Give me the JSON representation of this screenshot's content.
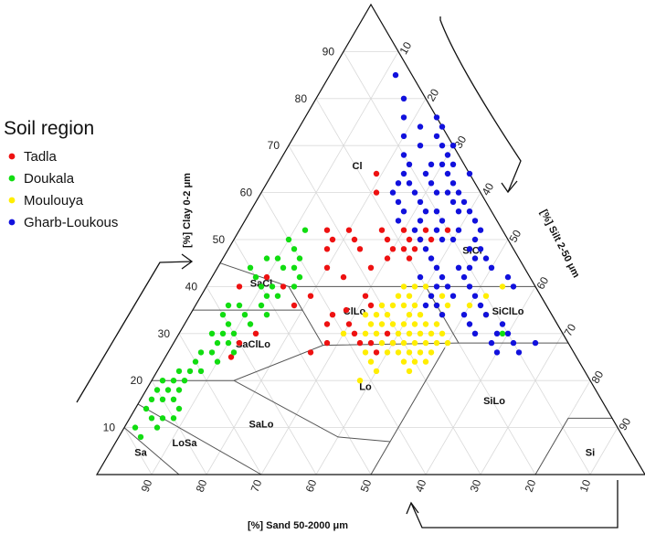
{
  "chart_data": {
    "type": "scatter",
    "subtype": "soil texture triangle",
    "legend": {
      "title": "Soil region",
      "placement": "left",
      "items": [
        {
          "label": "Tadla",
          "color": "#ee1111"
        },
        {
          "label": "Doukala",
          "color": "#11dd11"
        },
        {
          "label": "Moulouya",
          "color": "#ffee00"
        },
        {
          "label": "Gharb-Loukous",
          "color": "#1111dd"
        }
      ]
    },
    "axes": {
      "clay": {
        "label": "[%] Clay 0-2 μm",
        "ticks": [
          "10",
          "20",
          "30",
          "40",
          "50",
          "60",
          "70",
          "80",
          "90"
        ]
      },
      "silt": {
        "label": "[%] Silt 2-50 μm",
        "ticks": [
          "10",
          "20",
          "30",
          "40",
          "50",
          "60",
          "70",
          "80",
          "90"
        ]
      },
      "sand": {
        "label": "[%] Sand 50-2000 μm",
        "ticks": [
          "90",
          "80",
          "70",
          "60",
          "50",
          "40",
          "30",
          "20",
          "10"
        ]
      }
    },
    "classes": [
      "Cl",
      "SiCl",
      "SaCl",
      "ClLo",
      "SiClLo",
      "SaClLo",
      "Lo",
      "SiLo",
      "SaLo",
      "LoSa",
      "Sa",
      "Si"
    ],
    "series": [
      {
        "name": "Tadla",
        "points": [
          [
            64,
            19
          ],
          [
            60,
            21
          ],
          [
            50,
            18
          ],
          [
            50,
            22
          ],
          [
            48,
            18
          ],
          [
            52,
            20
          ],
          [
            52,
            26
          ],
          [
            52,
            30
          ],
          [
            50,
            28
          ],
          [
            48,
            24
          ],
          [
            50,
            32
          ],
          [
            48,
            30
          ],
          [
            52,
            34
          ],
          [
            50,
            34
          ],
          [
            48,
            32
          ],
          [
            52,
            38
          ],
          [
            50,
            36
          ],
          [
            48,
            34
          ],
          [
            46,
            30
          ],
          [
            44,
            28
          ],
          [
            38,
            30
          ],
          [
            36,
            32
          ],
          [
            35,
            28
          ],
          [
            32,
            26
          ],
          [
            32,
            30
          ],
          [
            30,
            32
          ],
          [
            28,
            28
          ],
          [
            28,
            34
          ],
          [
            28,
            36
          ],
          [
            26,
            26
          ],
          [
            30,
            14
          ],
          [
            28,
            12
          ],
          [
            25,
            12
          ],
          [
            40,
            14
          ],
          [
            42,
            10
          ],
          [
            40,
            6
          ],
          [
            38,
            20
          ],
          [
            36,
            18
          ],
          [
            42,
            24
          ],
          [
            44,
            20
          ],
          [
            34,
            26
          ],
          [
            46,
            34
          ],
          [
            52,
            16
          ],
          [
            30,
            38
          ],
          [
            28,
            40
          ],
          [
            26,
            38
          ]
        ]
      },
      {
        "name": "Doukala",
        "points": [
          [
            14,
            2
          ],
          [
            16,
            2
          ],
          [
            18,
            2
          ],
          [
            12,
            4
          ],
          [
            10,
            2
          ],
          [
            8,
            4
          ],
          [
            16,
            6
          ],
          [
            18,
            4
          ],
          [
            20,
            6
          ],
          [
            22,
            4
          ],
          [
            14,
            8
          ],
          [
            12,
            6
          ],
          [
            10,
            6
          ],
          [
            20,
            2
          ],
          [
            22,
            8
          ],
          [
            24,
            6
          ],
          [
            26,
            6
          ],
          [
            28,
            8
          ],
          [
            28,
            10
          ],
          [
            26,
            8
          ],
          [
            30,
            6
          ],
          [
            32,
            8
          ],
          [
            34,
            10
          ],
          [
            36,
            8
          ],
          [
            30,
            8
          ],
          [
            32,
            12
          ],
          [
            38,
            12
          ],
          [
            40,
            10
          ],
          [
            42,
            8
          ],
          [
            44,
            6
          ],
          [
            46,
            8
          ],
          [
            48,
            12
          ],
          [
            36,
            6
          ],
          [
            40,
            16
          ],
          [
            42,
            16
          ],
          [
            44,
            12
          ],
          [
            46,
            14
          ],
          [
            50,
            10
          ],
          [
            52,
            12
          ],
          [
            34,
            14
          ],
          [
            38,
            14
          ],
          [
            24,
            10
          ],
          [
            26,
            12
          ],
          [
            20,
            4
          ],
          [
            18,
            6
          ],
          [
            16,
            4
          ],
          [
            12,
            8
          ],
          [
            30,
            10
          ],
          [
            30,
            59
          ],
          [
            22,
            6
          ],
          [
            34,
            6
          ],
          [
            44,
            14
          ],
          [
            46,
            10
          ],
          [
            40,
            12
          ],
          [
            36,
            12
          ]
        ]
      },
      {
        "name": "Moulouya",
        "points": [
          [
            36,
            38
          ],
          [
            34,
            40
          ],
          [
            32,
            38
          ],
          [
            32,
            36
          ],
          [
            30,
            36
          ],
          [
            34,
            34
          ],
          [
            36,
            34
          ],
          [
            30,
            40
          ],
          [
            28,
            40
          ],
          [
            28,
            38
          ],
          [
            32,
            42
          ],
          [
            30,
            42
          ],
          [
            36,
            40
          ],
          [
            34,
            42
          ],
          [
            38,
            38
          ],
          [
            38,
            36
          ],
          [
            30,
            44
          ],
          [
            28,
            44
          ],
          [
            26,
            42
          ],
          [
            26,
            44
          ],
          [
            28,
            46
          ],
          [
            26,
            46
          ],
          [
            24,
            44
          ],
          [
            24,
            46
          ],
          [
            26,
            48
          ],
          [
            28,
            50
          ],
          [
            30,
            48
          ],
          [
            34,
            46
          ],
          [
            36,
            44
          ],
          [
            38,
            44
          ],
          [
            36,
            46
          ],
          [
            40,
            38
          ],
          [
            40,
            40
          ],
          [
            38,
            42
          ],
          [
            34,
            32
          ],
          [
            30,
            30
          ],
          [
            32,
            44
          ],
          [
            28,
            42
          ],
          [
            26,
            40
          ],
          [
            34,
            36
          ],
          [
            32,
            40
          ],
          [
            30,
            46
          ],
          [
            28,
            48
          ],
          [
            32,
            46
          ],
          [
            24,
            48
          ],
          [
            22,
            46
          ],
          [
            20,
            38
          ],
          [
            36,
            50
          ],
          [
            38,
            52
          ],
          [
            34,
            54
          ],
          [
            40,
            54
          ],
          [
            24,
            38
          ],
          [
            22,
            40
          ],
          [
            26,
            36
          ],
          [
            36,
            36
          ],
          [
            40,
            36
          ],
          [
            32,
            34
          ],
          [
            30,
            34
          ]
        ]
      },
      {
        "name": "Gharb-Loukous",
        "points": [
          [
            85,
            12
          ],
          [
            80,
            16
          ],
          [
            76,
            18
          ],
          [
            74,
            22
          ],
          [
            70,
            24
          ],
          [
            68,
            22
          ],
          [
            66,
            24
          ],
          [
            72,
            20
          ],
          [
            64,
            28
          ],
          [
            62,
            26
          ],
          [
            60,
            28
          ],
          [
            58,
            26
          ],
          [
            56,
            28
          ],
          [
            60,
            24
          ],
          [
            62,
            24
          ],
          [
            64,
            24
          ],
          [
            66,
            28
          ],
          [
            62,
            30
          ],
          [
            60,
            32
          ],
          [
            58,
            30
          ],
          [
            56,
            32
          ],
          [
            54,
            32
          ],
          [
            56,
            34
          ],
          [
            54,
            36
          ],
          [
            52,
            36
          ],
          [
            50,
            38
          ],
          [
            48,
            36
          ],
          [
            46,
            38
          ],
          [
            44,
            40
          ],
          [
            42,
            38
          ],
          [
            40,
            42
          ],
          [
            38,
            42
          ],
          [
            36,
            42
          ],
          [
            34,
            50
          ],
          [
            32,
            58
          ],
          [
            30,
            58
          ],
          [
            28,
            62
          ],
          [
            28,
            66
          ],
          [
            26,
            64
          ],
          [
            40,
            56
          ],
          [
            42,
            54
          ],
          [
            44,
            50
          ],
          [
            46,
            48
          ],
          [
            48,
            44
          ],
          [
            50,
            40
          ],
          [
            52,
            40
          ],
          [
            54,
            42
          ],
          [
            56,
            38
          ],
          [
            58,
            36
          ],
          [
            60,
            34
          ],
          [
            62,
            34
          ],
          [
            64,
            32
          ],
          [
            66,
            32
          ],
          [
            68,
            30
          ],
          [
            70,
            28
          ],
          [
            72,
            26
          ],
          [
            74,
            26
          ],
          [
            76,
            24
          ],
          [
            70,
            30
          ],
          [
            66,
            30
          ],
          [
            64,
            36
          ],
          [
            60,
            36
          ],
          [
            58,
            38
          ],
          [
            56,
            40
          ],
          [
            52,
            44
          ],
          [
            50,
            44
          ],
          [
            48,
            46
          ],
          [
            46,
            46
          ],
          [
            44,
            46
          ],
          [
            40,
            48
          ],
          [
            38,
            50
          ],
          [
            36,
            52
          ],
          [
            34,
            54
          ],
          [
            30,
            60
          ],
          [
            28,
            58
          ],
          [
            26,
            60
          ],
          [
            36,
            44
          ],
          [
            40,
            44
          ],
          [
            42,
            46
          ],
          [
            44,
            44
          ],
          [
            52,
            32
          ],
          [
            50,
            34
          ],
          [
            54,
            28
          ],
          [
            42,
            42
          ],
          [
            38,
            46
          ],
          [
            34,
            46
          ],
          [
            32,
            52
          ],
          [
            30,
            54
          ]
        ]
      }
    ]
  }
}
